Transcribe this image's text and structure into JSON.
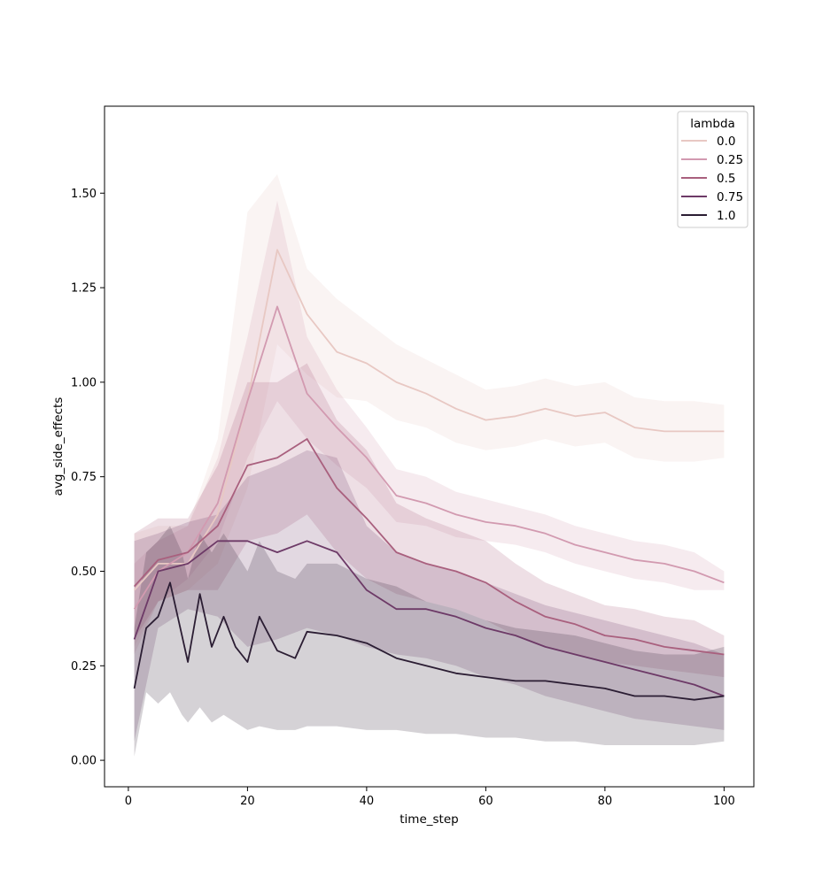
{
  "chart_data": {
    "type": "line",
    "xlabel": "time_step",
    "ylabel": "avg_side_effects",
    "xlim": [
      -4,
      105
    ],
    "ylim": [
      -0.07,
      1.73
    ],
    "xticks": [
      0,
      20,
      40,
      60,
      80,
      100
    ],
    "yticks": [
      0.0,
      0.25,
      0.5,
      0.75,
      1.0,
      1.25,
      1.5
    ],
    "xtick_labels": [
      "0",
      "20",
      "40",
      "60",
      "80",
      "100"
    ],
    "ytick_labels": [
      "0.00",
      "0.25",
      "0.50",
      "0.75",
      "1.00",
      "1.25",
      "1.50"
    ],
    "grid": false,
    "legend": {
      "title": "lambda",
      "placement": "top-right"
    },
    "series": [
      {
        "name": "0.0",
        "color": "#e8c8c3",
        "band_opacity": 0.2,
        "x": [
          1,
          5,
          10,
          15,
          20,
          25,
          30,
          35,
          40,
          45,
          50,
          55,
          60,
          65,
          70,
          75,
          80,
          85,
          90,
          95,
          100
        ],
        "y": [
          0.45,
          0.52,
          0.52,
          0.65,
          0.95,
          1.35,
          1.18,
          1.08,
          1.05,
          1.0,
          0.97,
          0.93,
          0.9,
          0.91,
          0.93,
          0.91,
          0.92,
          0.88,
          0.87,
          0.87,
          0.87
        ],
        "low": [
          0.3,
          0.42,
          0.45,
          0.52,
          0.72,
          1.1,
          1.02,
          0.96,
          0.95,
          0.9,
          0.88,
          0.84,
          0.82,
          0.83,
          0.85,
          0.83,
          0.84,
          0.8,
          0.79,
          0.79,
          0.8
        ],
        "high": [
          0.6,
          0.62,
          0.62,
          0.85,
          1.45,
          1.55,
          1.3,
          1.22,
          1.16,
          1.1,
          1.06,
          1.02,
          0.98,
          0.99,
          1.01,
          0.99,
          1.0,
          0.96,
          0.95,
          0.95,
          0.94
        ]
      },
      {
        "name": "0.25",
        "color": "#d29ab0",
        "band_opacity": 0.2,
        "x": [
          1,
          5,
          10,
          15,
          20,
          25,
          30,
          35,
          40,
          45,
          50,
          55,
          60,
          65,
          70,
          75,
          80,
          85,
          90,
          95,
          100
        ],
        "y": [
          0.4,
          0.5,
          0.55,
          0.68,
          0.95,
          1.2,
          0.97,
          0.88,
          0.8,
          0.7,
          0.68,
          0.65,
          0.63,
          0.62,
          0.6,
          0.57,
          0.55,
          0.53,
          0.52,
          0.5,
          0.47
        ],
        "low": [
          0.28,
          0.42,
          0.48,
          0.58,
          0.8,
          0.95,
          0.85,
          0.78,
          0.72,
          0.63,
          0.62,
          0.59,
          0.58,
          0.57,
          0.55,
          0.52,
          0.5,
          0.48,
          0.47,
          0.45,
          0.45
        ],
        "high": [
          0.52,
          0.58,
          0.62,
          0.8,
          1.12,
          1.48,
          1.12,
          0.98,
          0.88,
          0.77,
          0.75,
          0.71,
          0.69,
          0.67,
          0.65,
          0.62,
          0.6,
          0.58,
          0.57,
          0.55,
          0.5
        ]
      },
      {
        "name": "0.5",
        "color": "#a9607e",
        "band_opacity": 0.2,
        "x": [
          1,
          5,
          10,
          15,
          20,
          25,
          30,
          35,
          40,
          45,
          50,
          55,
          60,
          65,
          70,
          75,
          80,
          85,
          90,
          95,
          100
        ],
        "y": [
          0.46,
          0.53,
          0.55,
          0.62,
          0.78,
          0.8,
          0.85,
          0.72,
          0.64,
          0.55,
          0.52,
          0.5,
          0.47,
          0.42,
          0.38,
          0.36,
          0.33,
          0.32,
          0.3,
          0.29,
          0.28
        ],
        "low": [
          0.32,
          0.42,
          0.45,
          0.45,
          0.58,
          0.6,
          0.65,
          0.55,
          0.48,
          0.44,
          0.42,
          0.4,
          0.37,
          0.33,
          0.3,
          0.28,
          0.26,
          0.25,
          0.24,
          0.23,
          0.22
        ],
        "high": [
          0.6,
          0.64,
          0.64,
          0.78,
          1.0,
          1.0,
          1.05,
          0.9,
          0.82,
          0.68,
          0.64,
          0.61,
          0.58,
          0.52,
          0.47,
          0.44,
          0.41,
          0.4,
          0.38,
          0.37,
          0.33
        ]
      },
      {
        "name": "0.75",
        "color": "#6d3a67",
        "band_opacity": 0.2,
        "x": [
          1,
          5,
          10,
          15,
          20,
          25,
          30,
          35,
          40,
          45,
          50,
          55,
          60,
          65,
          70,
          75,
          80,
          85,
          90,
          95,
          100
        ],
        "y": [
          0.32,
          0.5,
          0.52,
          0.58,
          0.58,
          0.55,
          0.58,
          0.55,
          0.45,
          0.4,
          0.4,
          0.38,
          0.35,
          0.33,
          0.3,
          0.28,
          0.26,
          0.24,
          0.22,
          0.2,
          0.17
        ],
        "low": [
          0.05,
          0.35,
          0.4,
          0.38,
          0.3,
          0.32,
          0.35,
          0.33,
          0.3,
          0.28,
          0.27,
          0.25,
          0.22,
          0.2,
          0.17,
          0.15,
          0.13,
          0.11,
          0.1,
          0.09,
          0.08
        ],
        "high": [
          0.58,
          0.6,
          0.63,
          0.65,
          0.75,
          0.78,
          0.82,
          0.8,
          0.62,
          0.55,
          0.52,
          0.5,
          0.47,
          0.44,
          0.41,
          0.39,
          0.37,
          0.35,
          0.33,
          0.31,
          0.28
        ]
      },
      {
        "name": "1.0",
        "color": "#2b1d33",
        "band_opacity": 0.2,
        "x": [
          1,
          3,
          5,
          7,
          9,
          10,
          12,
          14,
          16,
          18,
          20,
          22,
          25,
          28,
          30,
          35,
          40,
          45,
          50,
          55,
          60,
          65,
          70,
          75,
          80,
          85,
          90,
          95,
          100
        ],
        "y": [
          0.19,
          0.35,
          0.38,
          0.47,
          0.33,
          0.26,
          0.44,
          0.3,
          0.38,
          0.3,
          0.26,
          0.38,
          0.29,
          0.27,
          0.34,
          0.33,
          0.31,
          0.27,
          0.25,
          0.23,
          0.22,
          0.21,
          0.21,
          0.2,
          0.19,
          0.17,
          0.17,
          0.16,
          0.17
        ],
        "low": [
          0.01,
          0.18,
          0.15,
          0.18,
          0.12,
          0.1,
          0.14,
          0.1,
          0.12,
          0.1,
          0.08,
          0.09,
          0.08,
          0.08,
          0.09,
          0.09,
          0.08,
          0.08,
          0.07,
          0.07,
          0.06,
          0.06,
          0.05,
          0.05,
          0.04,
          0.04,
          0.04,
          0.04,
          0.05
        ],
        "high": [
          0.35,
          0.55,
          0.58,
          0.62,
          0.55,
          0.48,
          0.6,
          0.55,
          0.6,
          0.55,
          0.5,
          0.58,
          0.5,
          0.48,
          0.52,
          0.52,
          0.48,
          0.46,
          0.42,
          0.4,
          0.37,
          0.35,
          0.34,
          0.33,
          0.31,
          0.29,
          0.28,
          0.28,
          0.3
        ]
      }
    ]
  }
}
